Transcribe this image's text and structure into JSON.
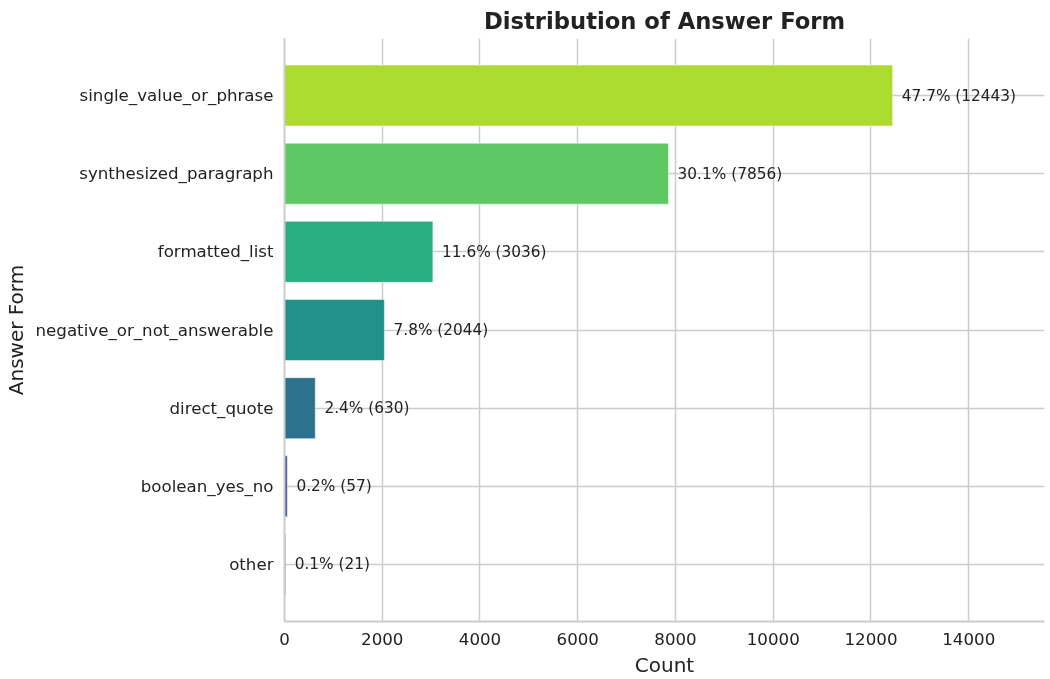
{
  "chart_data": {
    "type": "bar",
    "orientation": "horizontal",
    "title": "Distribution of Answer Form",
    "xlabel": "Count",
    "ylabel": "Answer Form",
    "categories": [
      "single_value_or_phrase",
      "synthesized_paragraph",
      "formatted_list",
      "negative_or_not_answerable",
      "direct_quote",
      "boolean_yes_no",
      "other"
    ],
    "values": [
      12443,
      7856,
      3036,
      2044,
      630,
      57,
      21
    ],
    "colors": [
      "#addc30",
      "#5ec962",
      "#28ae80",
      "#21918c",
      "#2c728e",
      "#3b528b",
      "#440154"
    ],
    "value_labels": [
      "47.7% (12443)",
      "30.1% (7856)",
      "11.6% (3036)",
      "7.8% (2044)",
      "2.4% (630)",
      "0.2% (57)",
      "0.1% (21)"
    ],
    "xlim": [
      0,
      15550
    ],
    "xticks": [
      0,
      2000,
      4000,
      6000,
      8000,
      10000,
      12000,
      14000
    ],
    "grid": true
  }
}
